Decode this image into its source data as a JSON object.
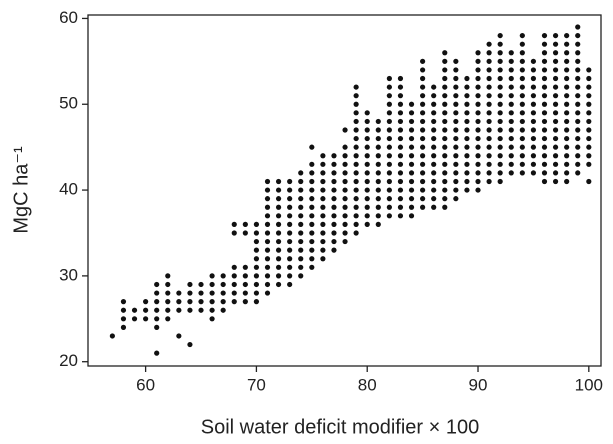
{
  "chart_data": {
    "type": "scatter",
    "x_label": "Soil water deficit modifier × 100",
    "y_label": "MgC ha⁻¹",
    "color": "#111111",
    "xlim": [
      54.8,
      101.1
    ],
    "xticks": [
      60,
      70,
      80,
      90,
      100
    ],
    "ylim": [
      19.5,
      60.4
    ],
    "yticks": [
      20,
      30,
      40,
      50,
      60
    ],
    "x": [
      57,
      58,
      58,
      58,
      58,
      59,
      59,
      60,
      60,
      60,
      61,
      61,
      61,
      61,
      61,
      61,
      61,
      62,
      62,
      62,
      62,
      62,
      62,
      63,
      63,
      63,
      63,
      64,
      64,
      64,
      64,
      64,
      65,
      65,
      65,
      65,
      66,
      66,
      66,
      66,
      66,
      66,
      67,
      67,
      67,
      67,
      67,
      68,
      68,
      68,
      68,
      68,
      68,
      68,
      69,
      69,
      69,
      69,
      69,
      69,
      69,
      70,
      70,
      70,
      70,
      70,
      70,
      70,
      70,
      70,
      70,
      71,
      71,
      71,
      71,
      71,
      71,
      71,
      71,
      71,
      71,
      71,
      71,
      71,
      71,
      72,
      72,
      72,
      72,
      72,
      72,
      72,
      72,
      72,
      72,
      72,
      72,
      72,
      73,
      73,
      73,
      73,
      73,
      73,
      73,
      73,
      73,
      73,
      73,
      73,
      73,
      74,
      74,
      74,
      74,
      74,
      74,
      74,
      74,
      74,
      74,
      74,
      74,
      74,
      75,
      75,
      75,
      75,
      75,
      75,
      75,
      75,
      75,
      75,
      75,
      75,
      75,
      75,
      76,
      76,
      76,
      76,
      76,
      76,
      76,
      76,
      76,
      76,
      76,
      76,
      76,
      77,
      77,
      77,
      77,
      77,
      77,
      77,
      77,
      77,
      77,
      77,
      77,
      78,
      78,
      78,
      78,
      78,
      78,
      78,
      78,
      78,
      78,
      78,
      78,
      78,
      79,
      79,
      79,
      79,
      79,
      79,
      79,
      79,
      79,
      79,
      79,
      79,
      79,
      79,
      79,
      79,
      79,
      79,
      80,
      80,
      80,
      80,
      80,
      80,
      80,
      80,
      80,
      80,
      80,
      80,
      80,
      80,
      81,
      81,
      81,
      81,
      81,
      81,
      81,
      81,
      81,
      81,
      81,
      81,
      81,
      82,
      82,
      82,
      82,
      82,
      82,
      82,
      82,
      82,
      82,
      82,
      82,
      82,
      82,
      82,
      82,
      82,
      83,
      83,
      83,
      83,
      83,
      83,
      83,
      83,
      83,
      83,
      83,
      83,
      83,
      83,
      83,
      83,
      83,
      84,
      84,
      84,
      84,
      84,
      84,
      84,
      84,
      84,
      84,
      84,
      84,
      84,
      84,
      85,
      85,
      85,
      85,
      85,
      85,
      85,
      85,
      85,
      85,
      85,
      85,
      85,
      85,
      85,
      85,
      85,
      85,
      86,
      86,
      86,
      86,
      86,
      86,
      86,
      86,
      86,
      86,
      86,
      86,
      86,
      86,
      86,
      87,
      87,
      87,
      87,
      87,
      87,
      87,
      87,
      87,
      87,
      87,
      87,
      87,
      87,
      87,
      87,
      87,
      87,
      87,
      88,
      88,
      88,
      88,
      88,
      88,
      88,
      88,
      88,
      88,
      88,
      88,
      88,
      88,
      88,
      88,
      88,
      89,
      89,
      89,
      89,
      89,
      89,
      89,
      89,
      89,
      89,
      89,
      89,
      89,
      89,
      90,
      90,
      90,
      90,
      90,
      90,
      90,
      90,
      90,
      90,
      90,
      90,
      90,
      90,
      90,
      90,
      90,
      91,
      91,
      91,
      91,
      91,
      91,
      91,
      91,
      91,
      91,
      91,
      91,
      91,
      91,
      91,
      91,
      91,
      92,
      92,
      92,
      92,
      92,
      92,
      92,
      92,
      92,
      92,
      92,
      92,
      92,
      92,
      92,
      92,
      92,
      92,
      93,
      93,
      93,
      93,
      93,
      93,
      93,
      93,
      93,
      93,
      93,
      93,
      93,
      93,
      93,
      94,
      94,
      94,
      94,
      94,
      94,
      94,
      94,
      94,
      94,
      94,
      94,
      94,
      94,
      94,
      94,
      94,
      95,
      95,
      95,
      95,
      95,
      95,
      95,
      95,
      95,
      95,
      95,
      95,
      95,
      95,
      96,
      96,
      96,
      96,
      96,
      96,
      96,
      96,
      96,
      96,
      96,
      96,
      96,
      96,
      96,
      96,
      96,
      96,
      97,
      97,
      97,
      97,
      97,
      97,
      97,
      97,
      97,
      97,
      97,
      97,
      97,
      97,
      97,
      97,
      97,
      97,
      98,
      98,
      98,
      98,
      98,
      98,
      98,
      98,
      98,
      98,
      98,
      98,
      98,
      98,
      98,
      98,
      98,
      98,
      99,
      99,
      99,
      99,
      99,
      99,
      99,
      99,
      99,
      99,
      99,
      99,
      99,
      99,
      99,
      99,
      99,
      99,
      100,
      100,
      100,
      100,
      100,
      100,
      100,
      100,
      100,
      100,
      100,
      100,
      100
    ],
    "values": [
      23,
      24,
      25,
      26,
      27,
      25,
      26,
      25,
      26,
      27,
      21,
      24,
      25,
      26,
      27,
      28,
      29,
      25,
      26,
      27,
      28,
      29,
      30,
      23,
      26,
      27,
      28,
      22,
      26,
      27,
      28,
      29,
      26,
      27,
      28,
      29,
      25,
      26,
      27,
      28,
      29,
      30,
      26,
      27,
      28,
      29,
      30,
      27,
      28,
      29,
      30,
      31,
      35,
      36,
      27,
      28,
      29,
      30,
      31,
      35,
      36,
      27,
      28,
      29,
      30,
      31,
      32,
      33,
      34,
      35,
      36,
      28,
      29,
      30,
      31,
      32,
      33,
      34,
      35,
      36,
      37,
      38,
      39,
      40,
      41,
      29,
      30,
      31,
      32,
      33,
      34,
      35,
      36,
      37,
      38,
      39,
      40,
      41,
      29,
      30,
      31,
      32,
      33,
      34,
      35,
      36,
      37,
      38,
      39,
      40,
      41,
      30,
      31,
      32,
      33,
      34,
      35,
      36,
      37,
      38,
      39,
      40,
      41,
      42,
      31,
      32,
      33,
      34,
      35,
      36,
      37,
      38,
      39,
      40,
      41,
      42,
      43,
      45,
      32,
      33,
      34,
      35,
      36,
      37,
      38,
      39,
      40,
      41,
      42,
      43,
      44,
      33,
      34,
      35,
      36,
      37,
      38,
      39,
      40,
      41,
      42,
      43,
      44,
      34,
      35,
      36,
      37,
      38,
      39,
      40,
      41,
      42,
      43,
      44,
      45,
      47,
      35,
      36,
      37,
      38,
      39,
      40,
      41,
      42,
      43,
      44,
      45,
      46,
      47,
      48,
      49,
      50,
      51,
      52,
      36,
      37,
      38,
      39,
      40,
      41,
      42,
      43,
      44,
      45,
      46,
      47,
      48,
      49,
      36,
      37,
      38,
      39,
      40,
      41,
      42,
      43,
      44,
      45,
      46,
      47,
      48,
      37,
      38,
      39,
      40,
      41,
      42,
      43,
      44,
      45,
      46,
      47,
      48,
      49,
      50,
      51,
      52,
      53,
      37,
      38,
      39,
      40,
      41,
      42,
      43,
      44,
      45,
      46,
      47,
      48,
      49,
      50,
      51,
      52,
      53,
      37,
      38,
      39,
      40,
      41,
      42,
      43,
      44,
      45,
      46,
      47,
      48,
      49,
      50,
      38,
      39,
      40,
      41,
      42,
      43,
      44,
      45,
      46,
      47,
      48,
      49,
      50,
      51,
      52,
      53,
      54,
      55,
      38,
      39,
      40,
      41,
      42,
      43,
      44,
      45,
      46,
      47,
      48,
      49,
      50,
      51,
      52,
      38,
      39,
      40,
      41,
      42,
      43,
      44,
      45,
      46,
      47,
      48,
      49,
      50,
      51,
      52,
      53,
      54,
      55,
      56,
      39,
      40,
      41,
      42,
      43,
      44,
      45,
      46,
      47,
      48,
      49,
      50,
      51,
      52,
      53,
      54,
      55,
      40,
      41,
      42,
      43,
      44,
      45,
      46,
      47,
      48,
      49,
      50,
      51,
      52,
      53,
      40,
      41,
      42,
      43,
      44,
      45,
      46,
      47,
      48,
      49,
      50,
      51,
      52,
      53,
      54,
      55,
      56,
      41,
      42,
      43,
      44,
      45,
      46,
      47,
      48,
      49,
      50,
      51,
      52,
      53,
      54,
      55,
      56,
      57,
      41,
      42,
      43,
      44,
      45,
      46,
      47,
      48,
      49,
      50,
      51,
      52,
      53,
      54,
      55,
      56,
      57,
      58,
      42,
      43,
      44,
      45,
      46,
      47,
      48,
      49,
      50,
      51,
      52,
      53,
      54,
      55,
      56,
      42,
      43,
      44,
      45,
      46,
      47,
      48,
      49,
      50,
      51,
      52,
      53,
      54,
      55,
      56,
      57,
      58,
      42,
      43,
      44,
      45,
      46,
      47,
      48,
      49,
      50,
      51,
      52,
      53,
      54,
      55,
      41,
      42,
      43,
      44,
      45,
      46,
      47,
      48,
      49,
      50,
      51,
      52,
      53,
      54,
      55,
      56,
      57,
      58,
      41,
      42,
      43,
      44,
      45,
      46,
      47,
      48,
      49,
      50,
      51,
      52,
      53,
      54,
      55,
      56,
      57,
      58,
      41,
      42,
      43,
      44,
      45,
      46,
      47,
      48,
      49,
      50,
      51,
      52,
      53,
      54,
      55,
      56,
      57,
      58,
      42,
      43,
      44,
      45,
      46,
      47,
      48,
      49,
      50,
      51,
      52,
      53,
      54,
      55,
      56,
      57,
      58,
      59,
      41,
      43,
      44,
      45,
      46,
      47,
      48,
      49,
      50,
      51,
      52,
      53,
      54
    ]
  }
}
